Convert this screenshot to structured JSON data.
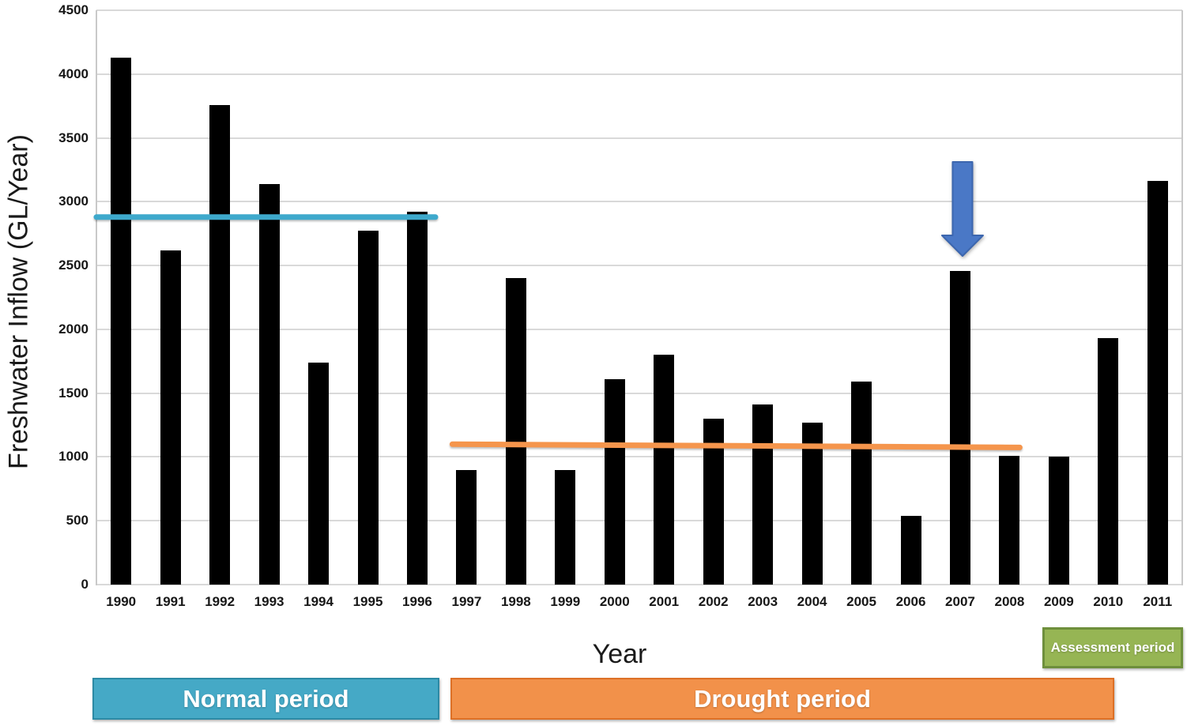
{
  "chart_data": {
    "type": "bar",
    "title": "",
    "xlabel": "Year",
    "ylabel": "Freshwater Inflow (GL/Year)",
    "ylim": [
      0,
      4500
    ],
    "yticks": [
      0,
      500,
      1000,
      1500,
      2000,
      2500,
      3000,
      3500,
      4000,
      4500
    ],
    "grid": "horizontal",
    "legend_position": "none",
    "bar_color": "#000000",
    "categories": [
      "1990",
      "1991",
      "1992",
      "1993",
      "1994",
      "1995",
      "1996",
      "1997",
      "1998",
      "1999",
      "2000",
      "2001",
      "2002",
      "2003",
      "2004",
      "2005",
      "2006",
      "2007",
      "2008",
      "2009",
      "2010",
      "2011"
    ],
    "values": [
      4130,
      2620,
      3760,
      3140,
      1740,
      2770,
      2920,
      900,
      2400,
      900,
      1610,
      1800,
      1300,
      1410,
      1270,
      1590,
      540,
      2460,
      1010,
      1000,
      1930,
      3160
    ],
    "reference_lines": [
      {
        "name": "normal-period-average-line",
        "color": "#3ea9cc",
        "value_start": 2880,
        "value_end": 2880,
        "start_category": "1990",
        "end_category": "1996",
        "starts_at_axis": true
      },
      {
        "name": "drought-period-average-line",
        "color": "#f5954c",
        "value_start": 1100,
        "value_end": 1075,
        "start_category": "1997",
        "end_category": "2008",
        "starts_at_axis": false
      }
    ],
    "annotations": [
      {
        "name": "down-arrow-2007",
        "type": "down-arrow",
        "category": "2007",
        "points_to_value": 2460,
        "fill": "#4a78c6",
        "stroke": "#3c66ae"
      }
    ],
    "period_bands": [
      {
        "label": "Normal period",
        "start_category": "1990",
        "end_category": "1996",
        "fill": "#45a9c6",
        "border": "#2c8aa5"
      },
      {
        "label": "Drought period",
        "start_category": "1997",
        "end_category": "2008",
        "fill": "#f2914a",
        "border": "#dd7026"
      },
      {
        "label": "Assessment period",
        "start_category": "2009",
        "end_category": "2011",
        "fill": "#96b554",
        "border": "#6e8f3c"
      }
    ]
  }
}
